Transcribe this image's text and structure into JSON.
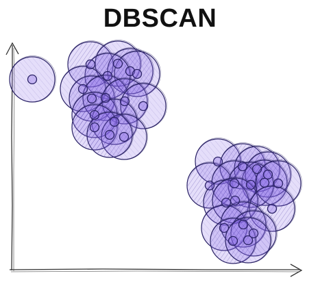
{
  "title": "DBSCAN",
  "colors": {
    "fill": "#8a6be6",
    "stroke": "#2a2266",
    "hatch": "#4a3aa0",
    "axis": "#333333",
    "title": "#111111"
  },
  "diagram": {
    "circle_count": 34,
    "groups": [
      "outlier-point",
      "upper-left-cluster",
      "lower-right-cluster"
    ]
  }
}
